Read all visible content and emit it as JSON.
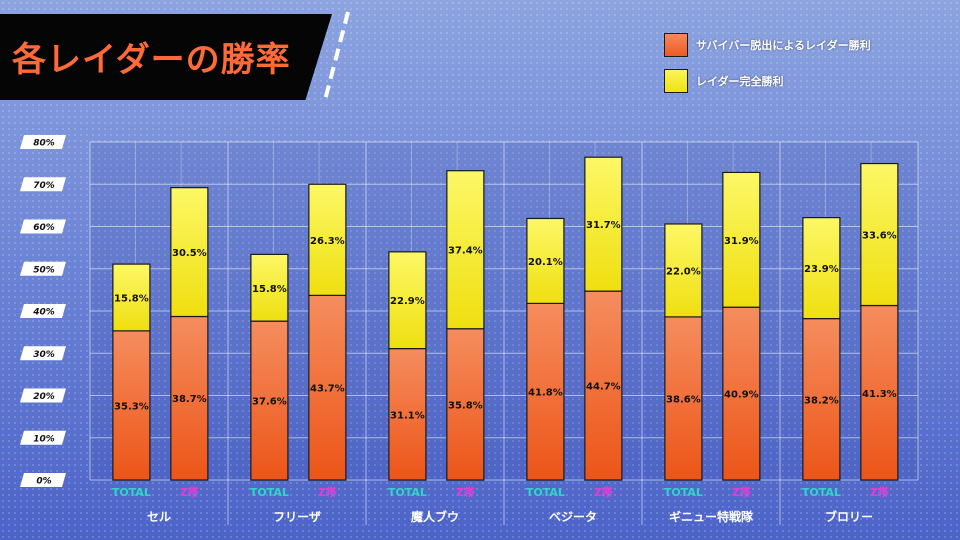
{
  "title": "各レイダーの勝率",
  "colors": {
    "survivor": "#f26a35",
    "complete": "#f7ee1c",
    "total_label": "#2dd7c6",
    "z_label": "#e83ad4"
  },
  "chart_data": {
    "type": "bar",
    "stacked": true,
    "ylim": [
      0,
      80
    ],
    "yticks": [
      "0%",
      "10%",
      "20%",
      "30%",
      "40%",
      "50%",
      "60%",
      "70%",
      "80%"
    ],
    "grid": true,
    "legend_position": "top-right",
    "sub_labels": [
      "TOTAL",
      "Z帯"
    ],
    "series": [
      {
        "name": "サバイバー脱出によるレイダー勝利",
        "color": "#f26a35"
      },
      {
        "name": "レイダー完全勝利",
        "color": "#f7ee1c"
      }
    ],
    "groups": [
      {
        "name": "セル",
        "bars": [
          {
            "label": "TOTAL",
            "values": [
              35.3,
              15.8
            ],
            "labels": [
              "35.3%",
              "15.8%"
            ]
          },
          {
            "label": "Z帯",
            "values": [
              38.7,
              30.5
            ],
            "labels": [
              "38.7%",
              "30.5%"
            ]
          }
        ]
      },
      {
        "name": "フリーザ",
        "bars": [
          {
            "label": "TOTAL",
            "values": [
              37.6,
              15.8
            ],
            "labels": [
              "37.6%",
              "15.8%"
            ]
          },
          {
            "label": "Z帯",
            "values": [
              43.7,
              26.3
            ],
            "labels": [
              "43.7%",
              "26.3%"
            ]
          }
        ]
      },
      {
        "name": "魔人ブウ",
        "bars": [
          {
            "label": "TOTAL",
            "values": [
              31.1,
              22.9
            ],
            "labels": [
              "31.1%",
              "22.9%"
            ]
          },
          {
            "label": "Z帯",
            "values": [
              35.8,
              37.4
            ],
            "labels": [
              "35.8%",
              "37.4%"
            ]
          }
        ]
      },
      {
        "name": "ベジータ",
        "bars": [
          {
            "label": "TOTAL",
            "values": [
              41.8,
              20.1
            ],
            "labels": [
              "41.8%",
              "20.1%"
            ]
          },
          {
            "label": "Z帯",
            "values": [
              44.7,
              31.7
            ],
            "labels": [
              "44.7%",
              "31.7%"
            ]
          }
        ]
      },
      {
        "name": "ギニュー特戦隊",
        "bars": [
          {
            "label": "TOTAL",
            "values": [
              38.6,
              22.0
            ],
            "labels": [
              "38.6%",
              "22.0%"
            ]
          },
          {
            "label": "Z帯",
            "values": [
              40.9,
              31.9
            ],
            "labels": [
              "40.9%",
              "31.9%"
            ]
          }
        ]
      },
      {
        "name": "ブロリー",
        "bars": [
          {
            "label": "TOTAL",
            "values": [
              38.2,
              23.9
            ],
            "labels": [
              "38.2%",
              "23.9%"
            ]
          },
          {
            "label": "Z帯",
            "values": [
              41.3,
              33.6
            ],
            "labels": [
              "41.3%",
              "33.6%"
            ]
          }
        ]
      }
    ]
  }
}
